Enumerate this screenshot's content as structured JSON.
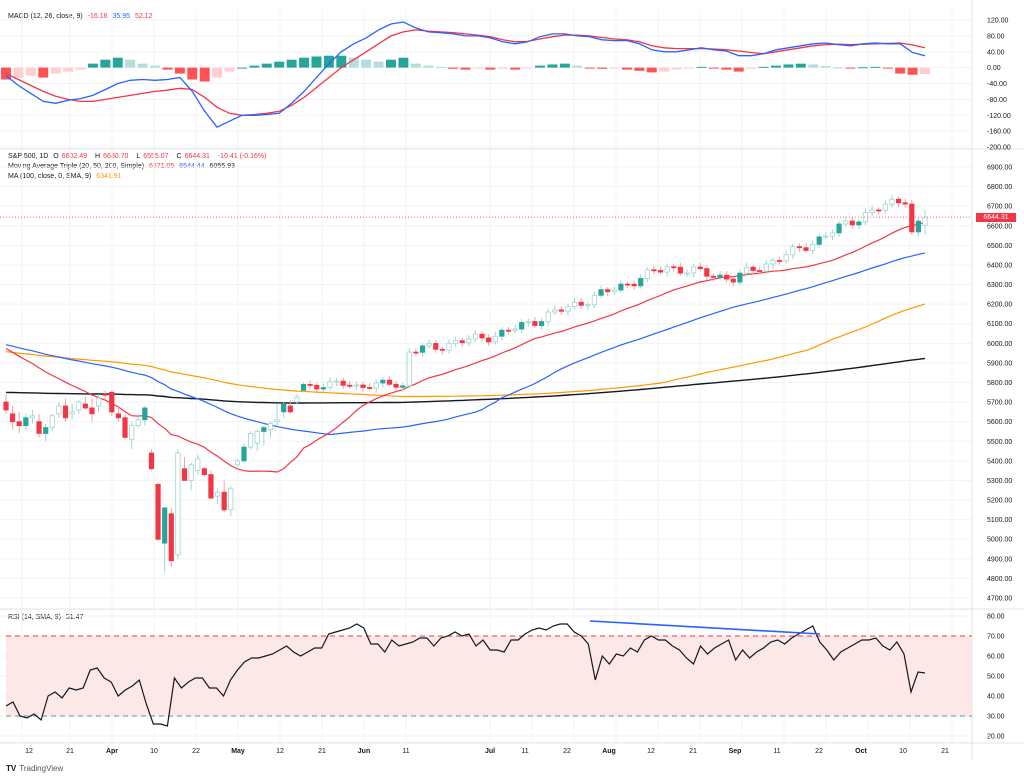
{
  "macd_legend": {
    "title": "MACD (12, 26, close, 9)",
    "histogram": "-16.16",
    "macd": "35.95",
    "signal": "52.12"
  },
  "price_legend": {
    "symbol": "S&P 500, 1D",
    "open_label": "O",
    "open": "6602.49",
    "high_label": "H",
    "high": "6680.70",
    "low_label": "L",
    "low": "6555.07",
    "close_label": "C",
    "close": "6644.31",
    "change": "-10.41 (-0.16%)",
    "ma_triple_title": "Moving Average Triple (20, 50, 200, Simple)",
    "ma20": "6671.05",
    "ma50": "6544.44",
    "ma200": "6055.93",
    "ma100_title": "MA (100, close, 0, SMA, 9)",
    "ma100": "6341.91"
  },
  "rsi_legend": {
    "title": "RSI (14, SMA, 9)",
    "value": "51.47"
  },
  "current_price_tag": "6644.31",
  "brand": {
    "logo": "TV",
    "name": "TradingView"
  },
  "colors": {
    "up": "#26a69a",
    "down": "#f23645",
    "ma20": "#f23645",
    "ma50": "#2962ff",
    "ma200": "#131722",
    "ma100": "#ff9800",
    "macd": "#2962ff",
    "signal": "#f23645",
    "rsi": "#131722",
    "rsi_band": "#fde8e8",
    "trendline": "#2962ff"
  },
  "chart_data": [
    {
      "type": "bar",
      "title": "MACD (12, 26, close, 9)",
      "yticks": [
        "120.00",
        "80.00",
        "40.00",
        "0.00",
        "-40.00",
        "-80.00",
        "-120.00",
        "-160.00",
        "-200.00"
      ],
      "ylim": [
        -200,
        140
      ],
      "series": [
        {
          "name": "MACD",
          "values": [
            -20,
            -45,
            -65,
            -85,
            -90,
            -82,
            -78,
            -70,
            -55,
            -40,
            -32,
            -30,
            -32,
            -30,
            -25,
            -60,
            -110,
            -150,
            -135,
            -120,
            -120,
            -118,
            -115,
            -90,
            -60,
            -25,
            10,
            40,
            60,
            75,
            95,
            110,
            115,
            100,
            90,
            88,
            85,
            80,
            80,
            75,
            65,
            60,
            65,
            78,
            85,
            85,
            80,
            78,
            70,
            68,
            68,
            60,
            45,
            40,
            40,
            45,
            50,
            45,
            42,
            30,
            30,
            35,
            45,
            50,
            55,
            60,
            62,
            58,
            55,
            60,
            62,
            60,
            60,
            38,
            30
          ]
        },
        {
          "name": "Signal",
          "values": [
            -15,
            -30,
            -45,
            -60,
            -72,
            -80,
            -85,
            -85,
            -80,
            -75,
            -70,
            -65,
            -60,
            -57,
            -52,
            -55,
            -75,
            -100,
            -115,
            -120,
            -118,
            -115,
            -110,
            -95,
            -75,
            -50,
            -25,
            0,
            20,
            40,
            60,
            80,
            90,
            95,
            92,
            90,
            88,
            85,
            82,
            78,
            70,
            65,
            66,
            72,
            78,
            82,
            82,
            80,
            76,
            72,
            70,
            65,
            55,
            50,
            48,
            48,
            48,
            47,
            45,
            42,
            38,
            35,
            40,
            45,
            50,
            55,
            58,
            59,
            58,
            59,
            60,
            61,
            62,
            57,
            50
          ]
        },
        {
          "name": "Histogram",
          "values": [
            -30,
            -25,
            -20,
            -25,
            -15,
            -10,
            -5,
            10,
            20,
            25,
            20,
            10,
            5,
            -5,
            -15,
            -30,
            -35,
            -25,
            -10,
            0,
            5,
            10,
            15,
            20,
            25,
            28,
            30,
            30,
            25,
            20,
            15,
            20,
            25,
            10,
            5,
            2,
            -3,
            -5,
            -2,
            -5,
            -3,
            -5,
            -1,
            5,
            8,
            10,
            5,
            -2,
            -3,
            -2,
            -5,
            -8,
            -12,
            -10,
            -5,
            -2,
            2,
            -2,
            -5,
            -10,
            -3,
            2,
            5,
            8,
            10,
            8,
            4,
            1,
            -2,
            1,
            2,
            -1,
            -15,
            -18,
            -16
          ]
        }
      ]
    },
    {
      "type": "candlestick",
      "title": "S&P 500, 1D",
      "yticks": [
        "6900.00",
        "6800.00",
        "6700.00",
        "6600.00",
        "6500.00",
        "6400.00",
        "6300.00",
        "6200.00",
        "6100.00",
        "6000.00",
        "5900.00",
        "5800.00",
        "5700.00",
        "5600.00",
        "5500.00",
        "5400.00",
        "5300.00",
        "5200.00",
        "5100.00",
        "5000.00",
        "4900.00",
        "4800.00",
        "4700.00"
      ],
      "ylim": [
        4650,
        6950
      ],
      "x_ticks": [
        "12",
        "21",
        "Apr",
        "10",
        "22",
        "May",
        "12",
        "21",
        "Jun",
        "11",
        "Jul",
        "11",
        "22",
        "Aug",
        "12",
        "21",
        "Sep",
        "11",
        "22",
        "Oct",
        "10",
        "21"
      ],
      "ohlc": [
        [
          5700,
          5740,
          5640,
          5660
        ],
        [
          5640,
          5680,
          5560,
          5600
        ],
        [
          5600,
          5650,
          5540,
          5580
        ],
        [
          5580,
          5640,
          5560,
          5620
        ],
        [
          5620,
          5660,
          5590,
          5630
        ],
        [
          5600,
          5640,
          5520,
          5540
        ],
        [
          5540,
          5590,
          5500,
          5570
        ],
        [
          5570,
          5640,
          5550,
          5630
        ],
        [
          5640,
          5700,
          5620,
          5680
        ],
        [
          5680,
          5720,
          5600,
          5620
        ],
        [
          5640,
          5690,
          5610,
          5650
        ],
        [
          5660,
          5710,
          5640,
          5700
        ],
        [
          5690,
          5730,
          5660,
          5670
        ],
        [
          5670,
          5720,
          5600,
          5640
        ],
        [
          5680,
          5740,
          5650,
          5720
        ],
        [
          5740,
          5760,
          5710,
          5735
        ],
        [
          5750,
          5760,
          5630,
          5650
        ],
        [
          5640,
          5680,
          5600,
          5620
        ],
        [
          5620,
          5640,
          5510,
          5520
        ],
        [
          5510,
          5600,
          5460,
          5580
        ],
        [
          5580,
          5640,
          5570,
          5610
        ],
        [
          5610,
          5680,
          5580,
          5670
        ],
        [
          5440,
          5460,
          5350,
          5360
        ],
        [
          5280,
          5290,
          4990,
          5000
        ],
        [
          4980,
          5110,
          4830,
          5160
        ],
        [
          5130,
          5160,
          4860,
          4890
        ],
        [
          4920,
          5460,
          4900,
          5440
        ],
        [
          5360,
          5420,
          5300,
          5300
        ],
        [
          5300,
          5390,
          5250,
          5380
        ],
        [
          5350,
          5430,
          5330,
          5410
        ],
        [
          5360,
          5370,
          5320,
          5330
        ],
        [
          5330,
          5350,
          5220,
          5210
        ],
        [
          5220,
          5260,
          5180,
          5240
        ],
        [
          5240,
          5300,
          5140,
          5150
        ],
        [
          5150,
          5270,
          5120,
          5260
        ],
        [
          5380,
          5410,
          5370,
          5400
        ],
        [
          5400,
          5490,
          5390,
          5470
        ],
        [
          5470,
          5550,
          5460,
          5540
        ],
        [
          5490,
          5560,
          5450,
          5550
        ],
        [
          5550,
          5580,
          5480,
          5570
        ],
        [
          5560,
          5600,
          5520,
          5590
        ],
        [
          5600,
          5690,
          5580,
          5610
        ],
        [
          5650,
          5700,
          5620,
          5690
        ],
        [
          5680,
          5710,
          5640,
          5650
        ],
        [
          5700,
          5740,
          5690,
          5725
        ],
        [
          5760,
          5800,
          5750,
          5790
        ]
      ],
      "series": [
        {
          "name": "MA20",
          "color": "#f23645",
          "last": 6671.05
        },
        {
          "name": "MA50",
          "color": "#2962ff",
          "last": 6544.44
        },
        {
          "name": "MA200",
          "color": "#131722",
          "last": 6055.93
        },
        {
          "name": "MA100",
          "color": "#ff9800",
          "last": 6341.91
        }
      ],
      "last_close": 6644.31
    },
    {
      "type": "line",
      "title": "RSI (14, SMA, 9)",
      "yticks": [
        "80.00",
        "70.00",
        "60.00",
        "50.00",
        "40.00",
        "30.00",
        "20.00"
      ],
      "ylim": [
        17,
        82
      ],
      "overbought": 70,
      "oversold": 30,
      "values": [
        35,
        37,
        30,
        29,
        31,
        28,
        40,
        42,
        39,
        44,
        43,
        44,
        53,
        54,
        49,
        47,
        40,
        43,
        45,
        48,
        36,
        26,
        26,
        25,
        49,
        44,
        47,
        49,
        49,
        44,
        44,
        40,
        48,
        53,
        57,
        59,
        59,
        60,
        61,
        63,
        65,
        62,
        60,
        62,
        64,
        64,
        71,
        72,
        73,
        74,
        76,
        74,
        66,
        66,
        62,
        68,
        65,
        66,
        67,
        69,
        69,
        65,
        69,
        70,
        72,
        70,
        71,
        65,
        68,
        63,
        63,
        62,
        68,
        68,
        71,
        73,
        74,
        73,
        75,
        76,
        76,
        72,
        70,
        66,
        48,
        60,
        56,
        61,
        60,
        64,
        62,
        68,
        70,
        68,
        68,
        65,
        63,
        59,
        56,
        65,
        61,
        64,
        66,
        68,
        58,
        63,
        59,
        62,
        64,
        67,
        68,
        66,
        69,
        71,
        73,
        75,
        67,
        63,
        58,
        62,
        64,
        66,
        68,
        68,
        69,
        65,
        63,
        67,
        61,
        42,
        52,
        51.5
      ],
      "trendline": {
        "from": [
          590,
          621
        ],
        "to": [
          820,
          634
        ]
      }
    }
  ]
}
